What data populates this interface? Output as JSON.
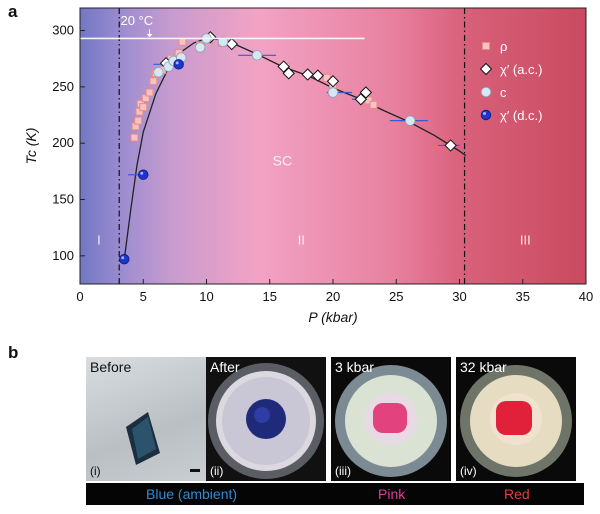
{
  "panel_a_label": "a",
  "panel_b_label": "b",
  "colors": {
    "region1_left": "#6e74c2",
    "region1_right": "#a98fd0",
    "sc_region": "#f2a6c6",
    "region3": "#c94e64",
    "rho_marker": "#e88a8a",
    "chi_dc_marker": "#1d35c8",
    "c_marker": "#d6e6f2",
    "hline": "#f4f4f4",
    "blue_caption": "#2f8bd6",
    "pink_caption": "#e23a9c",
    "red_caption": "#e0413a"
  },
  "chart_data": {
    "type": "scatter",
    "xlabel": "P (kbar)",
    "ylabel": "Tc (K)",
    "xlim": [
      0,
      40
    ],
    "ylim": [
      75,
      320
    ],
    "x_ticks": [
      0,
      5,
      10,
      15,
      20,
      25,
      30,
      35,
      40
    ],
    "y_ticks": [
      100,
      150,
      200,
      250,
      300
    ],
    "grid": false,
    "legend_position": "top-right",
    "annotations": {
      "temp_text": "20 °C",
      "temp_line_value": 293,
      "region_I": "I",
      "region_II": "II",
      "region_III": "III",
      "sc_label": "SC",
      "boundary_1": 3.1,
      "boundary_2": 30.4
    },
    "series": [
      {
        "name": "ρ",
        "marker": "square",
        "points": [
          [
            4.3,
            205
          ],
          [
            4.4,
            215
          ],
          [
            4.6,
            220
          ],
          [
            4.7,
            228
          ],
          [
            4.8,
            235
          ],
          [
            5.0,
            232
          ],
          [
            5.2,
            240
          ],
          [
            5.5,
            245
          ],
          [
            5.8,
            255
          ],
          [
            6.0,
            262
          ],
          [
            6.5,
            265
          ],
          [
            7.2,
            275
          ],
          [
            7.8,
            280
          ],
          [
            8.1,
            290
          ],
          [
            9.5,
            287
          ],
          [
            10.2,
            292
          ],
          [
            11.2,
            289
          ],
          [
            16.3,
            268
          ],
          [
            19.5,
            258
          ],
          [
            20.0,
            252
          ],
          [
            22.5,
            240
          ],
          [
            22.8,
            238
          ],
          [
            23.2,
            234
          ]
        ]
      },
      {
        "name": "χ′ (a.c.)",
        "marker": "diamond",
        "points": [
          [
            6.8,
            271
          ],
          [
            10.3,
            294
          ],
          [
            12.0,
            288
          ],
          [
            16.1,
            268
          ],
          [
            16.5,
            262
          ],
          [
            18.0,
            261
          ],
          [
            18.8,
            260
          ],
          [
            20.0,
            255
          ],
          [
            22.2,
            239
          ],
          [
            22.6,
            245
          ],
          [
            29.3,
            198
          ]
        ]
      },
      {
        "name": "c",
        "marker": "circle-light",
        "points": [
          [
            6.2,
            263
          ],
          [
            7.0,
            268
          ],
          [
            7.4,
            273
          ],
          [
            8.0,
            276
          ],
          [
            9.5,
            285
          ],
          [
            10.0,
            293
          ],
          [
            11.3,
            290
          ],
          [
            14.0,
            278
          ],
          [
            20.0,
            245
          ],
          [
            26.1,
            220
          ]
        ]
      },
      {
        "name": "χ′ (d.c.)",
        "marker": "circle-blue",
        "points": [
          [
            3.5,
            97
          ],
          [
            5.0,
            172
          ],
          [
            7.8,
            270
          ]
        ]
      }
    ],
    "error_bars": [
      [
        3.8,
        172,
        5.1,
        172
      ],
      [
        5.8,
        270,
        7.9,
        270
      ],
      [
        12.5,
        278,
        15.5,
        278
      ],
      [
        19.5,
        245,
        21.5,
        245
      ],
      [
        24.5,
        220,
        27.5,
        220
      ],
      [
        28.3,
        198,
        30.0,
        198
      ],
      [
        21.5,
        239,
        23.0,
        239
      ]
    ],
    "fit_curve": [
      [
        3.5,
        97
      ],
      [
        4.0,
        140
      ],
      [
        4.5,
        180
      ],
      [
        5.0,
        210
      ],
      [
        6.0,
        244
      ],
      [
        7.0,
        267
      ],
      [
        8.0,
        281
      ],
      [
        9.0,
        289
      ],
      [
        10.0,
        293
      ],
      [
        11.0,
        292
      ],
      [
        12.0,
        289
      ],
      [
        14.0,
        279
      ],
      [
        16.0,
        268
      ],
      [
        18.0,
        260
      ],
      [
        20.0,
        249
      ],
      [
        22.0,
        240
      ],
      [
        24.0,
        229
      ],
      [
        26.0,
        219
      ],
      [
        28.0,
        207
      ],
      [
        30.0,
        193
      ],
      [
        30.5,
        189
      ]
    ]
  },
  "panel_b": {
    "photos": [
      {
        "title": "Before",
        "num": "(i)"
      },
      {
        "title": "After",
        "num": "(ii)"
      },
      {
        "title": "3 kbar",
        "num": "(iii)"
      },
      {
        "title": "32 kbar",
        "num": "(iv)"
      }
    ],
    "captions": {
      "blue": "Blue (ambient)",
      "pink": "Pink",
      "red": "Red"
    }
  }
}
